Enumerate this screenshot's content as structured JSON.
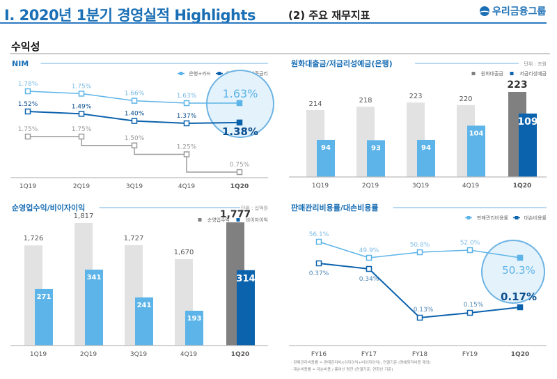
{
  "header": {
    "title": "I. 2020년 1분기 경영실적 Highlights",
    "subtitle": "(2) 주요 재무지표",
    "logo": "우리금융그룹"
  },
  "section": "수익성",
  "colors": {
    "accent": "#1a6fb5",
    "light_blue": "#5db4e8",
    "dark_blue": "#0b62ad",
    "gray": "#9a9a9a",
    "light_gray": "#e2e2e2",
    "dark_gray": "#808080"
  },
  "chart_data": [
    {
      "type": "line",
      "title": "NIM",
      "categories": [
        "1Q19",
        "2Q19",
        "3Q19",
        "4Q19",
        "1Q20"
      ],
      "series": [
        {
          "name": "은행+카드",
          "values": [
            1.78,
            1.75,
            1.66,
            1.63,
            1.63
          ],
          "labels": [
            "1.78%",
            "1.75%",
            "1.66%",
            "1.63%",
            "1.63%"
          ]
        },
        {
          "name": "은행",
          "values": [
            1.52,
            1.49,
            1.4,
            1.37,
            1.38
          ],
          "labels": [
            "1.52%",
            "1.49%",
            "1.40%",
            "1.37%",
            "1.38%"
          ]
        },
        {
          "name": "기준금리",
          "values": [
            1.75,
            1.75,
            1.5,
            1.25,
            0.75
          ],
          "labels": [
            "1.75%",
            "1.75%",
            "1.50%",
            "1.25%",
            "0.75%"
          ],
          "step": true
        }
      ]
    },
    {
      "type": "bar",
      "title": "원화대출금/저금리성예금(은행)",
      "unit": "단위 : 조원",
      "categories": [
        "1Q19",
        "2Q19",
        "3Q19",
        "4Q19",
        "1Q20"
      ],
      "series": [
        {
          "name": "원화대출금",
          "values": [
            214,
            218,
            223,
            220,
            223
          ]
        },
        {
          "name": "저금리성예금",
          "values": [
            94,
            93,
            94,
            104,
            109
          ]
        }
      ]
    },
    {
      "type": "bar",
      "title": "순영업수익/비이자이익",
      "unit": "단위 : 십억원",
      "categories": [
        "1Q19",
        "2Q19",
        "3Q19",
        "4Q19",
        "1Q20"
      ],
      "series": [
        {
          "name": "순영업수익",
          "values": [
            1726,
            1817,
            1727,
            1670,
            1777
          ],
          "labels": [
            "1,726",
            "1,817",
            "1,727",
            "1,670",
            "1,777"
          ]
        },
        {
          "name": "비이자이익",
          "values": [
            271,
            341,
            241,
            193,
            314
          ]
        }
      ]
    },
    {
      "type": "line",
      "title": "판매관리비용률/대손비용률",
      "categories": [
        "FY16",
        "FY17",
        "FY18",
        "FY19",
        "1Q20"
      ],
      "series": [
        {
          "name": "판매관리비용률",
          "values": [
            56.1,
            49.9,
            50.8,
            52.0,
            50.3
          ],
          "labels": [
            "56.1%",
            "49.9%",
            "50.8%",
            "52.0%",
            "50.3%"
          ]
        },
        {
          "name": "대손비용률",
          "values": [
            0.37,
            0.34,
            0.13,
            0.15,
            0.17
          ],
          "labels": [
            "0.37%",
            "0.34%",
            "0.13%",
            "0.15%",
            "0.17%"
          ]
        }
      ],
      "notes": [
        "· 판매관리비용률 = 판매관리비/(이자이익+비이자이익), 연결기준 (명예퇴직비용 제외)",
        "· 대손비용률 = 대손비용 / 총여신 평잔 (연결기준, 연환산 기준)"
      ]
    }
  ]
}
